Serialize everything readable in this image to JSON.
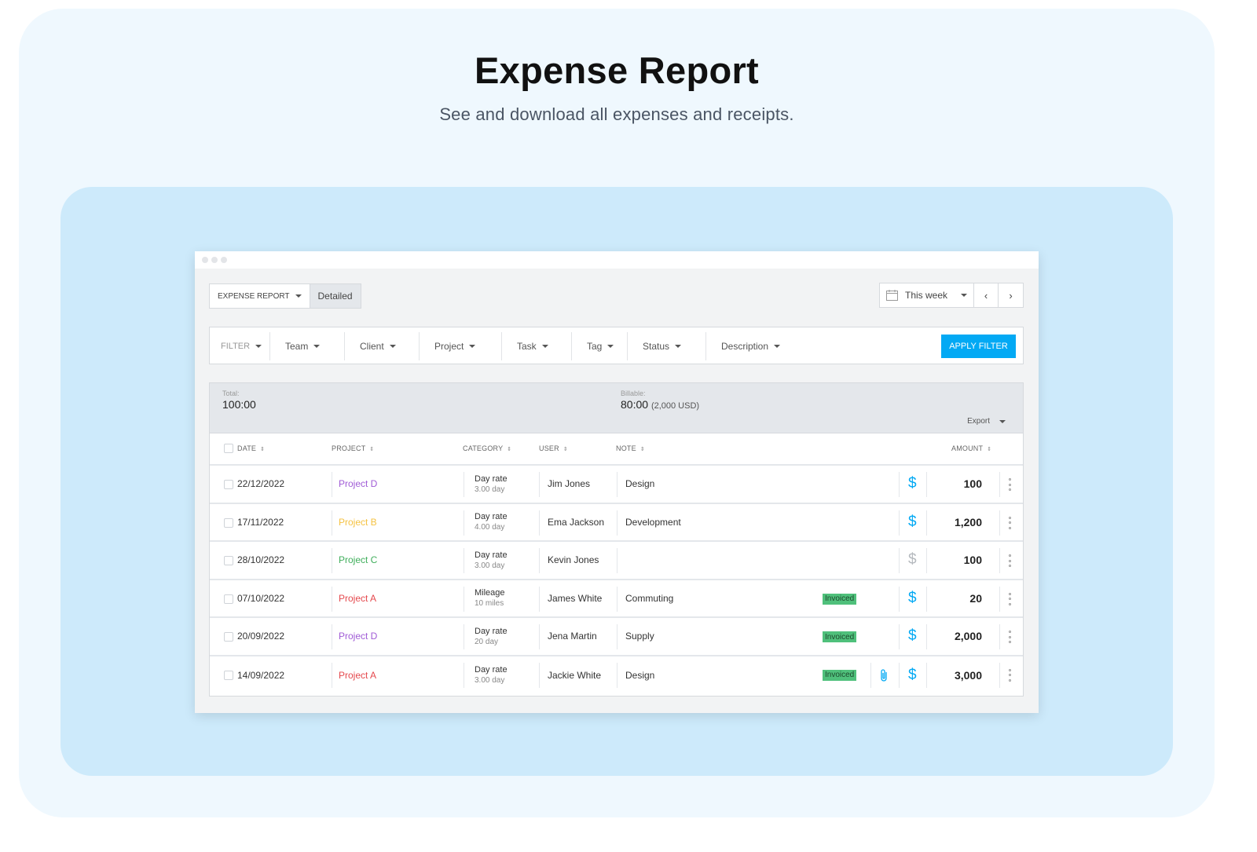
{
  "hero": {
    "title": "Expense Report",
    "subtitle": "See and download all expenses and receipts."
  },
  "toolbar": {
    "report_type": "EXPENSE REPORT",
    "view": "Detailed",
    "date_range": "This week"
  },
  "filters": {
    "filter": "FILTER",
    "team": "Team",
    "client": "Client",
    "project": "Project",
    "task": "Task",
    "tag": "Tag",
    "status": "Status",
    "description": "Description",
    "apply": "APPLY FILTER"
  },
  "summary": {
    "total_label": "Total:",
    "total_value": "100:00",
    "billable_label": "Billable:",
    "billable_value": "80:00",
    "billable_usd": "(2,000 USD)",
    "export": "Export"
  },
  "table": {
    "headers": {
      "date": "DATE",
      "project": "PROJECT",
      "category": "CATEGORY",
      "user": "USER",
      "note": "NOTE",
      "amount": "AMOUNT"
    },
    "rows": [
      {
        "date": "22/12/2022",
        "project": "Project D",
        "project_color": "#a05bd6",
        "category": "Day rate",
        "quantity": "3.00 day",
        "user": "Jim Jones",
        "note": "Design",
        "status": "",
        "billable": true,
        "attachment": false,
        "amount": "100"
      },
      {
        "date": "17/11/2022",
        "project": "Project B",
        "project_color": "#f5c242",
        "category": "Day rate",
        "quantity": "4.00 day",
        "user": "Ema Jackson",
        "note": "Development",
        "status": "",
        "billable": true,
        "attachment": false,
        "amount": "1,200"
      },
      {
        "date": "28/10/2022",
        "project": "Project C",
        "project_color": "#3fae5b",
        "category": "Day rate",
        "quantity": "3.00 day",
        "user": "Kevin Jones",
        "note": "",
        "status": "",
        "billable": false,
        "attachment": false,
        "amount": "100"
      },
      {
        "date": "07/10/2022",
        "project": "Project A",
        "project_color": "#e5484d",
        "category": "Mileage",
        "quantity": "10 miles",
        "user": "James White",
        "note": "Commuting",
        "status": "Invoiced",
        "billable": true,
        "attachment": false,
        "amount": "20"
      },
      {
        "date": "20/09/2022",
        "project": "Project D",
        "project_color": "#a05bd6",
        "category": "Day rate",
        "quantity": "20 day",
        "user": "Jena Martin",
        "note": "Supply",
        "status": "Invoiced",
        "billable": true,
        "attachment": false,
        "amount": "2,000"
      },
      {
        "date": "14/09/2022",
        "project": "Project A",
        "project_color": "#e5484d",
        "category": "Day rate",
        "quantity": "3.00 day",
        "user": "Jackie White",
        "note": "Design",
        "status": "Invoiced",
        "billable": true,
        "attachment": true,
        "amount": "3,000"
      }
    ]
  },
  "icons": {
    "calendar": "calendar-icon",
    "billable": "dollar-icon",
    "attachment": "paperclip-icon",
    "more": "more-vertical-icon"
  },
  "colors": {
    "accent": "#03a9f4",
    "invoiced_badge": "#4fc07b"
  }
}
